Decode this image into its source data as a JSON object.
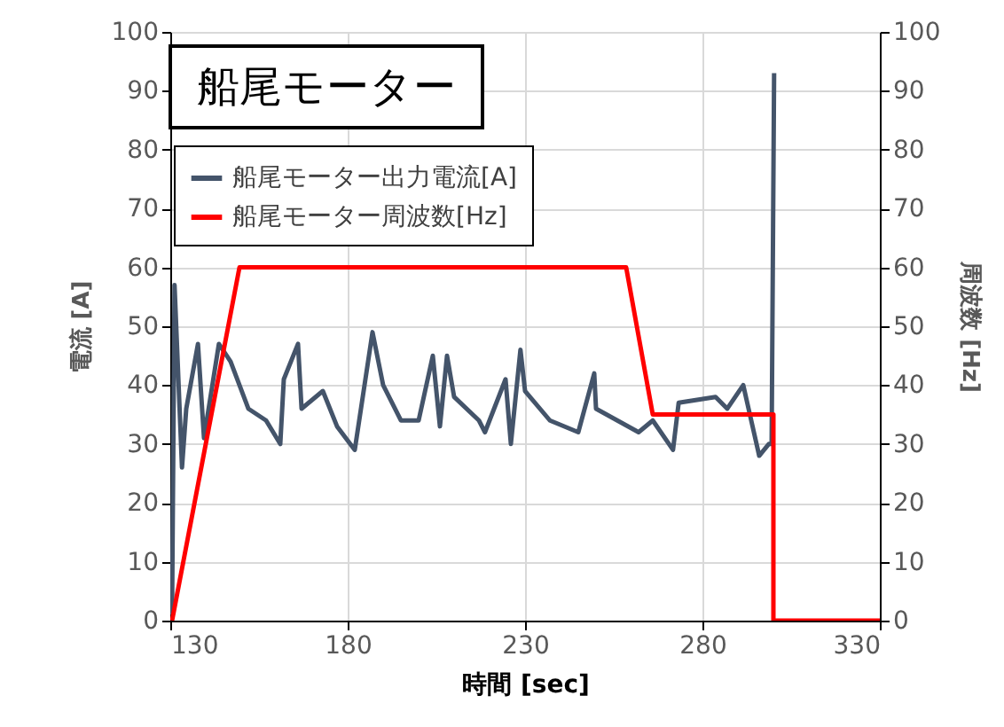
{
  "chart_data": {
    "type": "line",
    "title": "船尾モーター",
    "xlabel": "時間 [sec]",
    "ylabel": "電流 [A]",
    "y2label": "周波数 [Hz]",
    "xlim": [
      130,
      330
    ],
    "xticks": [
      130,
      180,
      230,
      280,
      330
    ],
    "ylim": [
      0,
      100
    ],
    "yticks": [
      0,
      10,
      20,
      30,
      40,
      50,
      60,
      70,
      80,
      90,
      100
    ],
    "y2lim": [
      0,
      100
    ],
    "y2ticks": [
      0,
      10,
      20,
      30,
      40,
      50,
      60,
      70,
      80,
      90,
      100
    ],
    "grid": true,
    "legend": "top left",
    "series": [
      {
        "name": "船尾モーター出力電流[A]",
        "color": "#44546a",
        "x": [
          130.5,
          131.2,
          133.3,
          134.5,
          137.8,
          139.5,
          143.7,
          147,
          152,
          157,
          161,
          162,
          166,
          167,
          173,
          177,
          182,
          187,
          190,
          195,
          200,
          204,
          206,
          208,
          210,
          217,
          218.7,
          224.5,
          226,
          228.7,
          230,
          237,
          245,
          249.5,
          250,
          262,
          266,
          271.7,
          273.3,
          283.7,
          287,
          291.5,
          293,
          296,
          298.7,
          299.5,
          300.2
        ],
        "values": [
          1,
          57,
          26,
          36,
          47,
          31,
          47,
          44,
          36,
          34,
          30,
          41,
          47,
          36,
          39,
          33,
          29,
          49,
          40,
          34,
          34,
          45,
          33,
          45,
          38,
          34,
          32,
          41,
          30,
          46,
          39,
          34,
          32,
          42,
          36,
          32,
          34,
          29,
          37,
          38,
          36,
          40,
          36,
          28,
          30,
          30,
          93
        ]
      },
      {
        "name": "船尾モーター周波数[Hz]",
        "color": "#ff0000",
        "axis": "y2",
        "x": [
          130.5,
          149.5,
          258.5,
          266,
          300,
          300,
          330
        ],
        "values": [
          0,
          60,
          60,
          35,
          35,
          0,
          0
        ]
      }
    ]
  }
}
